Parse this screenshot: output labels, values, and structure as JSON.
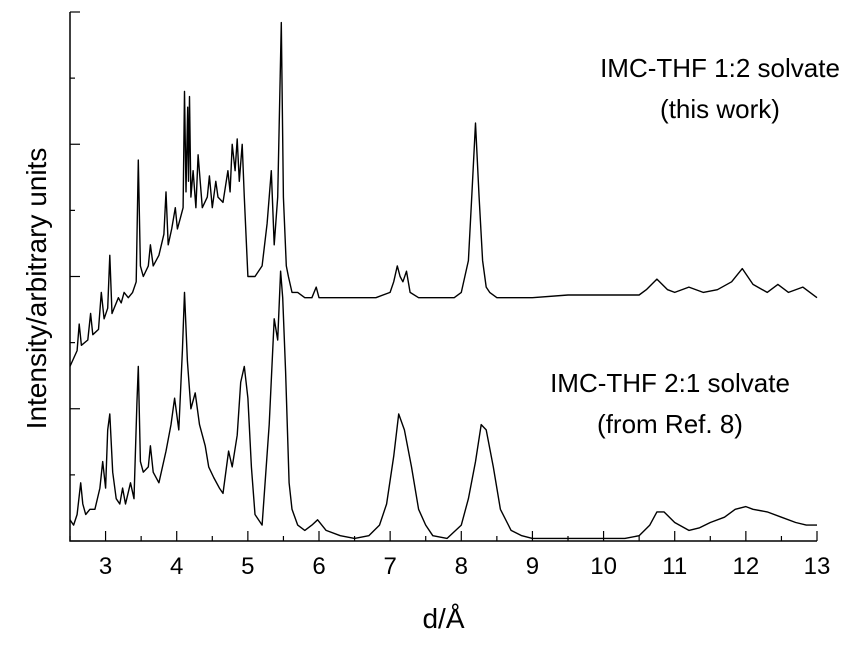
{
  "chart_data": {
    "type": "line",
    "xlabel": "d/Å",
    "ylabel": "Intensity/arbitrary units",
    "xlim": [
      2.5,
      13
    ],
    "ylim": [
      0,
      10
    ],
    "x_ticks": [
      "3",
      "4",
      "5",
      "6",
      "7",
      "8",
      "9",
      "10",
      "11",
      "12",
      "13"
    ],
    "grid": false,
    "legend": "none",
    "annotations": [
      {
        "lines": [
          "IMC-THF 1:2 solvate",
          "(this work)"
        ]
      },
      {
        "lines": [
          "IMC-THF 2:1 solvate",
          "(from Ref. 8)"
        ]
      }
    ],
    "series": [
      {
        "x": [
          2.5,
          2.6,
          2.63,
          2.66,
          2.75,
          2.79,
          2.82,
          2.9,
          2.94,
          2.98,
          3.03,
          3.06,
          3.09,
          3.12,
          3.18,
          3.22,
          3.26,
          3.32,
          3.38,
          3.43,
          3.46,
          3.49,
          3.53,
          3.6,
          3.63,
          3.67,
          3.75,
          3.82,
          3.85,
          3.88,
          3.93,
          3.98,
          4.01,
          4.05,
          4.09,
          4.11,
          4.13,
          4.155,
          4.165,
          4.18,
          4.2,
          4.23,
          4.27,
          4.3,
          4.36,
          4.43,
          4.46,
          4.5,
          4.55,
          4.58,
          4.65,
          4.72,
          4.75,
          4.78,
          4.82,
          4.85,
          4.88,
          4.92,
          4.95,
          5.0,
          5.1,
          5.2,
          5.27,
          5.33,
          5.37,
          5.42,
          5.47,
          5.5,
          5.54,
          5.57,
          5.62,
          5.7,
          5.8,
          5.9,
          5.96,
          6.0,
          6.2,
          6.5,
          6.8,
          7.0,
          7.05,
          7.1,
          7.14,
          7.18,
          7.23,
          7.28,
          7.4,
          7.7,
          7.9,
          8.0,
          8.1,
          8.15,
          8.2,
          8.25,
          8.3,
          8.35,
          8.4,
          8.5,
          8.7,
          9.0,
          9.5,
          10.0,
          10.5,
          10.6,
          10.75,
          10.9,
          11.0,
          11.2,
          11.4,
          11.6,
          11.8,
          11.95,
          12.1,
          12.3,
          12.45,
          12.6,
          12.8,
          13.0
        ],
        "y": [
          3.3,
          3.6,
          4.1,
          3.7,
          3.8,
          4.3,
          3.9,
          4.0,
          4.7,
          4.2,
          4.4,
          5.4,
          4.3,
          4.4,
          4.6,
          4.5,
          4.7,
          4.6,
          4.7,
          4.9,
          7.2,
          5.2,
          5.0,
          5.2,
          5.6,
          5.2,
          5.4,
          5.8,
          6.6,
          5.6,
          5.9,
          6.3,
          5.9,
          6.1,
          6.3,
          8.5,
          6.6,
          8.2,
          6.8,
          8.4,
          6.5,
          7.0,
          6.3,
          7.3,
          6.3,
          6.5,
          6.9,
          6.3,
          6.8,
          6.5,
          6.4,
          7.0,
          6.6,
          7.5,
          7.0,
          7.6,
          6.8,
          7.5,
          6.5,
          5.0,
          5.0,
          5.2,
          6.0,
          7.0,
          5.6,
          6.5,
          9.8,
          6.5,
          5.2,
          5.0,
          4.7,
          4.7,
          4.6,
          4.6,
          4.8,
          4.6,
          4.6,
          4.6,
          4.6,
          4.7,
          4.9,
          5.2,
          5.0,
          4.9,
          5.1,
          4.7,
          4.6,
          4.6,
          4.6,
          4.7,
          5.3,
          6.6,
          7.9,
          6.5,
          5.3,
          4.8,
          4.7,
          4.6,
          4.6,
          4.6,
          4.65,
          4.65,
          4.65,
          4.75,
          4.95,
          4.75,
          4.7,
          4.8,
          4.7,
          4.75,
          4.9,
          5.15,
          4.85,
          4.7,
          4.85,
          4.7,
          4.8,
          4.6
        ]
      },
      {
        "x": [
          2.5,
          2.55,
          2.6,
          2.65,
          2.68,
          2.72,
          2.78,
          2.85,
          2.92,
          2.96,
          3.0,
          3.03,
          3.06,
          3.1,
          3.15,
          3.2,
          3.24,
          3.28,
          3.35,
          3.4,
          3.44,
          3.46,
          3.49,
          3.53,
          3.6,
          3.63,
          3.67,
          3.75,
          3.85,
          3.92,
          3.97,
          4.03,
          4.08,
          4.11,
          4.15,
          4.2,
          4.26,
          4.32,
          4.4,
          4.45,
          4.52,
          4.6,
          4.65,
          4.7,
          4.73,
          4.78,
          4.85,
          4.9,
          4.95,
          5.0,
          5.05,
          5.1,
          5.2,
          5.3,
          5.37,
          5.42,
          5.46,
          5.49,
          5.53,
          5.58,
          5.62,
          5.7,
          5.8,
          5.9,
          5.98,
          6.1,
          6.3,
          6.5,
          6.7,
          6.85,
          6.95,
          7.05,
          7.12,
          7.2,
          7.3,
          7.4,
          7.5,
          7.6,
          7.8,
          8.0,
          8.1,
          8.2,
          8.28,
          8.35,
          8.45,
          8.55,
          8.7,
          8.85,
          9.0,
          9.5,
          10.0,
          10.3,
          10.5,
          10.65,
          10.75,
          10.85,
          11.0,
          11.2,
          11.35,
          11.5,
          11.7,
          11.85,
          12.0,
          12.1,
          12.3,
          12.5,
          12.7,
          12.85,
          13.0
        ],
        "y": [
          0.4,
          0.3,
          0.5,
          1.1,
          0.7,
          0.5,
          0.6,
          0.6,
          1.0,
          1.5,
          1.0,
          2.1,
          2.4,
          1.3,
          0.8,
          0.7,
          1.0,
          0.7,
          1.1,
          0.8,
          2.6,
          3.3,
          1.5,
          1.3,
          1.4,
          1.8,
          1.3,
          1.1,
          1.7,
          2.2,
          2.7,
          2.1,
          3.6,
          4.7,
          3.4,
          2.5,
          2.8,
          2.2,
          1.8,
          1.4,
          1.2,
          1.0,
          0.9,
          1.4,
          1.7,
          1.4,
          2.0,
          3.0,
          3.3,
          2.7,
          1.4,
          0.5,
          0.3,
          2.2,
          4.2,
          3.8,
          5.1,
          4.6,
          3.2,
          1.1,
          0.6,
          0.3,
          0.2,
          0.3,
          0.4,
          0.2,
          0.1,
          0.05,
          0.1,
          0.3,
          0.7,
          1.6,
          2.4,
          2.1,
          1.4,
          0.6,
          0.3,
          0.1,
          0.05,
          0.3,
          0.8,
          1.5,
          2.2,
          2.1,
          1.4,
          0.6,
          0.2,
          0.1,
          0.05,
          0.05,
          0.05,
          0.05,
          0.1,
          0.3,
          0.55,
          0.55,
          0.35,
          0.2,
          0.25,
          0.35,
          0.45,
          0.6,
          0.65,
          0.6,
          0.55,
          0.45,
          0.35,
          0.3,
          0.3
        ]
      }
    ]
  }
}
